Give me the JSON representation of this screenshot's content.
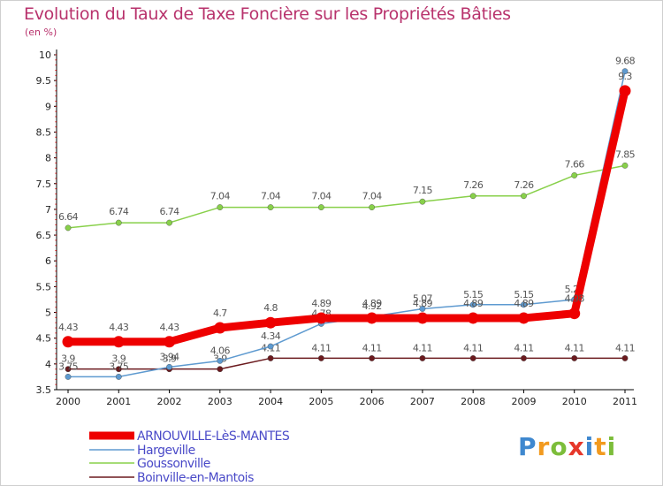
{
  "chart_data": {
    "type": "line",
    "title": "Evolution du Taux de Taxe Foncière sur les Propriétés Bâties",
    "subtitle": "(en %)",
    "x": [
      "2000",
      "2001",
      "2002",
      "2003",
      "2004",
      "2005",
      "2006",
      "2007",
      "2008",
      "2009",
      "2010",
      "2011"
    ],
    "y_ticks": [
      "3.5",
      "4",
      "4.5",
      "5",
      "5.5",
      "6",
      "6.5",
      "7",
      "7.5",
      "8",
      "8.5",
      "9",
      "9.5",
      "10"
    ],
    "ylim": [
      3.5,
      10
    ],
    "grid": false,
    "legend_position": "bottom-left",
    "series": [
      {
        "name": "Boinville-en-Mantois",
        "color": "#6b1a1e",
        "values": [
          3.9,
          3.9,
          3.9,
          3.9,
          4.11,
          4.11,
          4.11,
          4.11,
          4.11,
          4.11,
          4.11,
          4.11
        ],
        "labels": [
          "3.9",
          "3.9",
          "3.9",
          "3.9",
          "4.11",
          "4.11",
          "4.11",
          "4.11",
          "4.11",
          "4.11",
          "4.11",
          "4.11"
        ]
      },
      {
        "name": "Goussonville",
        "color": "#88d04a",
        "values": [
          6.64,
          6.74,
          6.74,
          7.04,
          7.04,
          7.04,
          7.04,
          7.15,
          7.26,
          7.26,
          7.66,
          7.85
        ],
        "labels": [
          "6.64",
          "6.74",
          "6.74",
          "7.04",
          "7.04",
          "7.04",
          "7.04",
          "7.15",
          "7.26",
          "7.26",
          "7.66",
          "7.85"
        ]
      },
      {
        "name": "Hargeville",
        "color": "#5e9ad0",
        "values": [
          3.75,
          3.75,
          3.94,
          4.06,
          4.34,
          4.78,
          4.92,
          5.07,
          5.15,
          5.15,
          5.25,
          9.68
        ],
        "labels": [
          "3.75",
          "3.75",
          "3.94",
          "4.06",
          "4.34",
          "4.78",
          "4.92",
          "5.07",
          "5.15",
          "5.15",
          "5.25",
          "9.68"
        ]
      },
      {
        "name": "ARNOUVILLE-LèS-MANTES",
        "color": "#ee0000",
        "values": [
          4.43,
          4.43,
          4.43,
          4.7,
          4.8,
          4.89,
          4.89,
          4.89,
          4.89,
          4.89,
          4.98,
          9.3
        ],
        "labels": [
          "4.43",
          "4.43",
          "4.43",
          "4.7",
          "4.8",
          "4.89",
          "4.89",
          "4.89",
          "4.89",
          "4.89",
          "4.98",
          "9.3"
        ]
      }
    ],
    "legend_order": [
      "ARNOUVILLE-LèS-MANTES",
      "Hargeville",
      "Goussonville",
      "Boinville-en-Mantois"
    ]
  },
  "logo": {
    "letters": [
      "P",
      "r",
      "o",
      "x",
      "i",
      "t",
      "i"
    ],
    "colors": [
      "#3f88cf",
      "#f29a1f",
      "#7cbd3a",
      "#e6372a",
      "#3f88cf",
      "#f29a1f",
      "#7cbd3a"
    ]
  }
}
